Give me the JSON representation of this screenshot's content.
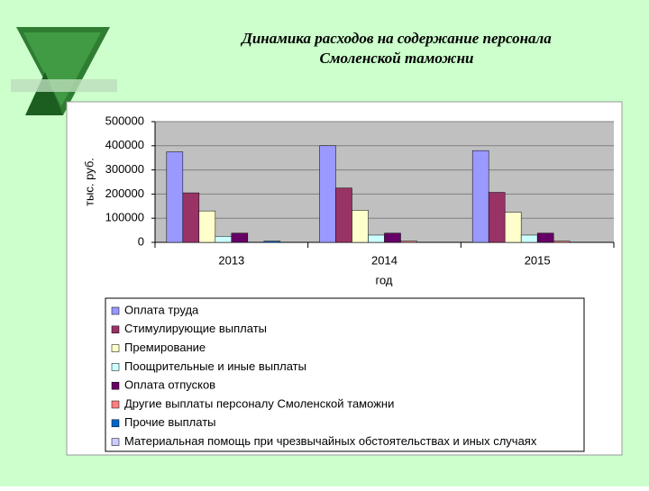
{
  "chart_data": {
    "type": "bar",
    "title": [
      "Динамика расходов на содержание персонала",
      "Смоленской таможни"
    ],
    "y_label": "тыс. руб.",
    "x_label": "год",
    "categories": [
      "2013",
      "2014",
      "2015"
    ],
    "series": [
      {
        "name": "Оплата труда",
        "color": "#9999ff",
        "values": [
          375000,
          400000,
          380000
        ]
      },
      {
        "name": "Стимулирующие выплаты",
        "color": "#993366",
        "values": [
          205000,
          225000,
          207000
        ]
      },
      {
        "name": "Премирование",
        "color": "#ffffcc",
        "values": [
          130000,
          133000,
          125000
        ]
      },
      {
        "name": "Поощрительные и иные выплаты",
        "color": "#ccffff",
        "values": [
          25000,
          30000,
          30000
        ]
      },
      {
        "name": "Оплата отпусков",
        "color": "#660066",
        "values": [
          38000,
          38000,
          38000
        ]
      },
      {
        "name": "Другие выплаты персоналу Смоленской таможни",
        "color": "#ff8080",
        "values": [
          0,
          5000,
          5000
        ]
      },
      {
        "name": "Прочие выплаты",
        "color": "#0066cc",
        "values": [
          5000,
          0,
          0
        ]
      },
      {
        "name": "Материальная помощь при чрезвычайных обстоятельствах и иных случаях",
        "color": "#ccccff",
        "values": [
          0,
          0,
          0
        ]
      }
    ],
    "ylim": [
      0,
      500000
    ],
    "yticks": [
      0,
      100000,
      200000,
      300000,
      400000,
      500000
    ],
    "grid": true
  }
}
